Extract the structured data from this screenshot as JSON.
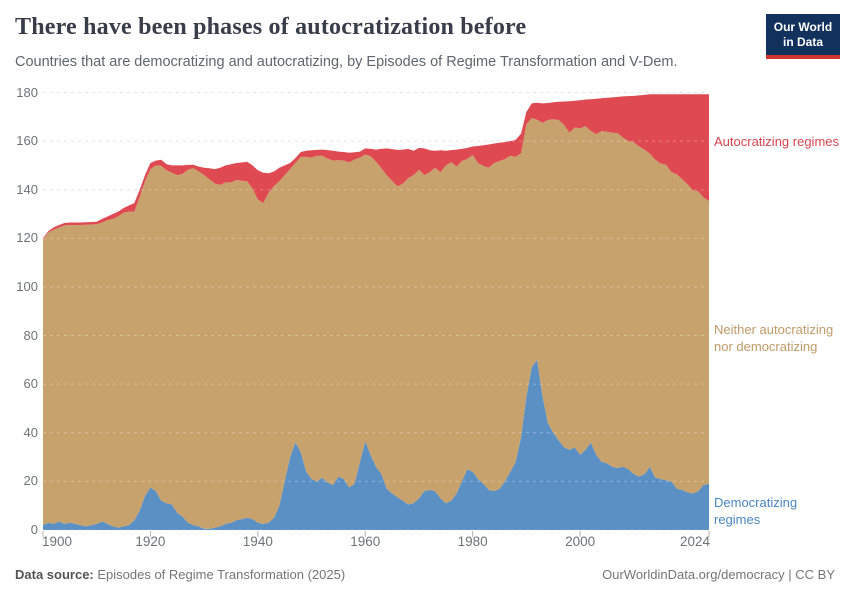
{
  "header": {
    "title": "There have been phases of autocratization before",
    "subtitle": "Countries that are democratizing and autocratizing, by Episodes of Regime Transformation and V-Dem.",
    "logo": {
      "line1": "Our World",
      "line2": "in Data"
    }
  },
  "legend": {
    "autocratizing": "Autocratizing regimes",
    "neither": "Neither autocratizing nor democratizing",
    "democratizing": "Democratizing regimes"
  },
  "footer": {
    "source_label": "Data source:",
    "source_text": " Episodes of Regime Transformation (2025)",
    "credit": "OurWorldinData.org/democracy | CC BY"
  },
  "colors": {
    "democratizing_fill": "#5b90c4",
    "neither_fill": "#c8a26c",
    "autocratizing_fill": "#df4952",
    "democratizing_label": "#4a86bf",
    "neither_label": "#c09a68",
    "autocratizing_label": "#d6464f",
    "grid": "#dadada",
    "axis_text": "#6f7377",
    "logo_bg": "#12315c",
    "logo_accent": "#d0342c"
  },
  "chart_data": {
    "type": "area",
    "stacked": true,
    "title": "There have been phases of autocratization before",
    "xlabel": "",
    "ylabel": "",
    "x_min": 1900,
    "x_max": 2024,
    "ylim": [
      0,
      180
    ],
    "grid": true,
    "legend_position": "right",
    "y_ticks": [
      0,
      20,
      40,
      60,
      80,
      100,
      120,
      140,
      160,
      180
    ],
    "x_ticks": [
      1900,
      1920,
      1940,
      1960,
      1980,
      2000,
      2024
    ],
    "years": [
      1900,
      1901,
      1902,
      1903,
      1904,
      1905,
      1906,
      1907,
      1908,
      1909,
      1910,
      1911,
      1912,
      1913,
      1914,
      1915,
      1916,
      1917,
      1918,
      1919,
      1920,
      1921,
      1922,
      1923,
      1924,
      1925,
      1926,
      1927,
      1928,
      1929,
      1930,
      1931,
      1932,
      1933,
      1934,
      1935,
      1936,
      1937,
      1938,
      1939,
      1940,
      1941,
      1942,
      1943,
      1944,
      1945,
      1946,
      1947,
      1948,
      1949,
      1950,
      1951,
      1952,
      1953,
      1954,
      1955,
      1956,
      1957,
      1958,
      1959,
      1960,
      1961,
      1962,
      1963,
      1964,
      1965,
      1966,
      1967,
      1968,
      1969,
      1970,
      1971,
      1972,
      1973,
      1974,
      1975,
      1976,
      1977,
      1978,
      1979,
      1980,
      1981,
      1982,
      1983,
      1984,
      1985,
      1986,
      1987,
      1988,
      1989,
      1990,
      1991,
      1992,
      1993,
      1994,
      1995,
      1996,
      1997,
      1998,
      1999,
      2000,
      2001,
      2002,
      2003,
      2004,
      2005,
      2006,
      2007,
      2008,
      2009,
      2010,
      2011,
      2012,
      2013,
      2014,
      2015,
      2016,
      2017,
      2018,
      2019,
      2020,
      2021,
      2022,
      2023,
      2024
    ],
    "series": [
      {
        "name": "Democratizing regimes",
        "color": "#5b90c4",
        "values": [
          2,
          3,
          2.5,
          3.5,
          2.5,
          3,
          2.5,
          2,
          1.5,
          2,
          2.5,
          3.5,
          2.5,
          1.5,
          1,
          1.5,
          2,
          4,
          8,
          14,
          17.5,
          16,
          12,
          11,
          10.5,
          7,
          5.5,
          3,
          2,
          1.5,
          0.5,
          0.5,
          1,
          1.5,
          2.5,
          3,
          4,
          4.5,
          5,
          4.5,
          3,
          2.5,
          3,
          5,
          10,
          20,
          30,
          36,
          32,
          24,
          21,
          20,
          21.5,
          19.5,
          18.5,
          22,
          21,
          17.5,
          19,
          28,
          36.5,
          31,
          26,
          23,
          17,
          15,
          13.5,
          12,
          10.5,
          11,
          13,
          16,
          16.5,
          16,
          13,
          11,
          12,
          15,
          20,
          25,
          24,
          21,
          19,
          16.5,
          16,
          17,
          20,
          24,
          28,
          38,
          55,
          67,
          70,
          55,
          44,
          40,
          37,
          34,
          33,
          34,
          31,
          33,
          36,
          31,
          28,
          27.5,
          26,
          25.5,
          26,
          25,
          23,
          22,
          23,
          26,
          21.5,
          21,
          20.5,
          20,
          17,
          16.5,
          15.5,
          15,
          16,
          18.5,
          19
        ]
      },
      {
        "name": "Neither autocratizing nor democratizing",
        "color": "#c8a26c",
        "values": [
          117.5,
          119.5,
          121,
          121,
          122.8,
          122.5,
          123,
          123.5,
          124.1,
          123.7,
          123.3,
          123,
          125,
          126.5,
          128,
          129,
          129,
          127,
          129,
          129.5,
          131,
          134,
          137.8,
          137,
          136.5,
          139,
          141,
          145.2,
          146.8,
          146,
          145.5,
          143.8,
          141.5,
          140.5,
          140.5,
          140,
          140,
          139.2,
          138.5,
          136,
          133,
          132,
          135.8,
          136.5,
          133.5,
          126,
          118.5,
          115,
          121.5,
          129.5,
          132.2,
          133.9,
          132.5,
          133.3,
          133.5,
          130.2,
          131,
          133.7,
          133.4,
          125.2,
          118,
          122.8,
          125.5,
          125.8,
          129,
          128.7,
          127.9,
          130.5,
          134.3,
          135,
          135.2,
          130,
          130.7,
          133,
          134.2,
          139,
          139.3,
          134.5,
          131.8,
          127.7,
          130.3,
          130,
          130.8,
          132.6,
          135,
          134.8,
          132.6,
          130,
          125.5,
          117,
          112,
          102.5,
          98.8,
          112.5,
          124.7,
          129,
          131.7,
          132.8,
          130.4,
          131.6,
          134.3,
          133.1,
          128.2,
          131.9,
          136.1,
          136.3,
          137.5,
          137.7,
          135.4,
          135,
          136.6,
          135.8,
          133.5,
          128.8,
          130.8,
          129.8,
          129.8,
          127.3,
          129.3,
          127.8,
          126.8,
          124.8,
          123.3,
          118.3,
          116.3
        ]
      },
      {
        "name": "Autocratizing regimes",
        "color": "#df4952",
        "values": [
          0.5,
          0.5,
          1,
          1,
          1,
          1,
          1,
          1,
          1,
          1,
          1,
          1.5,
          1.5,
          2,
          2,
          2,
          2.5,
          3.5,
          3,
          2.5,
          2.5,
          2,
          2.5,
          2.5,
          3,
          4,
          3.5,
          2,
          1.5,
          2,
          3,
          4.5,
          6,
          7,
          7,
          7.5,
          7,
          7.5,
          8,
          9.5,
          12,
          12.5,
          8,
          6,
          5.5,
          4,
          2.5,
          2,
          2,
          2.5,
          3,
          2.5,
          2.5,
          3.5,
          4,
          3.5,
          3.5,
          4,
          3,
          2.5,
          2.5,
          3,
          5,
          8,
          11,
          13,
          15,
          14,
          12,
          10,
          9,
          11,
          9,
          7,
          9,
          6,
          5,
          7,
          5,
          4.5,
          3.5,
          7,
          8.5,
          9.5,
          8,
          7.5,
          7,
          6,
          7,
          8,
          5,
          6,
          7,
          8,
          7,
          7,
          7.5,
          9.5,
          13,
          11,
          11.5,
          11,
          13,
          14.5,
          13.5,
          14,
          14.5,
          15,
          17,
          18.5,
          19,
          21,
          22.5,
          24.5,
          27,
          28.5,
          29,
          32,
          33,
          35,
          37,
          39.5,
          40,
          42.5,
          44
        ]
      }
    ]
  }
}
